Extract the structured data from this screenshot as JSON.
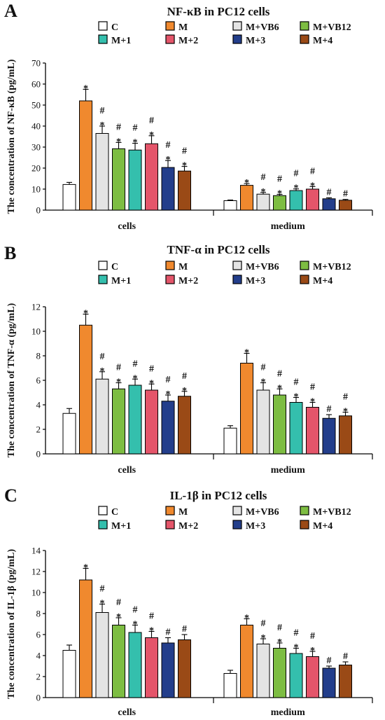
{
  "chart_data": [
    {
      "type": "bar",
      "panel": "A",
      "title": "NF-κB in PC12 cells",
      "xlabel": "",
      "ylabel": "The concentration of NF-κB (pg/mL)",
      "ylim": [
        0,
        70
      ],
      "yticks": [
        0,
        10,
        20,
        30,
        40,
        50,
        60,
        70
      ],
      "categories": [
        "cells",
        "medium"
      ],
      "series": [
        {
          "name": "C",
          "values": [
            12.2,
            4.5
          ],
          "errors": [
            1.0,
            0.3
          ],
          "labels": [
            "",
            ""
          ]
        },
        {
          "name": "M",
          "values": [
            52.0,
            11.8
          ],
          "errors": [
            5.5,
            0.8
          ],
          "labels": [
            "*",
            "*"
          ]
        },
        {
          "name": "M+VB6",
          "values": [
            36.5,
            7.6
          ],
          "errors": [
            3.5,
            0.8
          ],
          "labels": [
            "#\n*",
            "#\n*"
          ]
        },
        {
          "name": "M+VB12",
          "values": [
            29.2,
            6.9
          ],
          "errors": [
            3.0,
            0.6
          ],
          "labels": [
            "#\n*",
            "#\n*"
          ]
        },
        {
          "name": "M+1",
          "values": [
            28.6,
            9.3
          ],
          "errors": [
            3.2,
            0.8
          ],
          "labels": [
            "#\n*",
            "#\n*"
          ]
        },
        {
          "name": "M+2",
          "values": [
            31.6,
            10.0
          ],
          "errors": [
            3.8,
            1.2
          ],
          "labels": [
            "#\n*",
            "#\n*"
          ]
        },
        {
          "name": "M+3",
          "values": [
            20.3,
            5.4
          ],
          "errors": [
            3.3,
            0.5
          ],
          "labels": [
            "#\n*",
            "#"
          ]
        },
        {
          "name": "M+4",
          "values": [
            18.6,
            4.7
          ],
          "errors": [
            2.2,
            0.4
          ],
          "labels": [
            "#\n*",
            "#"
          ]
        }
      ]
    },
    {
      "type": "bar",
      "panel": "B",
      "title": "TNF-α in PC12 cells",
      "xlabel": "",
      "ylabel": "The concentration of TNF-α (pg/mL)",
      "ylim": [
        0,
        12
      ],
      "yticks": [
        0,
        2,
        4,
        6,
        8,
        10,
        12
      ],
      "categories": [
        "cells",
        "medium"
      ],
      "series": [
        {
          "name": "C",
          "values": [
            3.3,
            2.1
          ],
          "errors": [
            0.4,
            0.2
          ],
          "labels": [
            "",
            ""
          ]
        },
        {
          "name": "M",
          "values": [
            10.5,
            7.4
          ],
          "errors": [
            0.9,
            0.8
          ],
          "labels": [
            "*",
            "*"
          ]
        },
        {
          "name": "M+VB6",
          "values": [
            6.1,
            5.2
          ],
          "errors": [
            0.6,
            0.6
          ],
          "labels": [
            "#\n*",
            "#\n*"
          ]
        },
        {
          "name": "M+VB12",
          "values": [
            5.3,
            4.8
          ],
          "errors": [
            0.5,
            0.5
          ],
          "labels": [
            "#\n*",
            "#\n*"
          ]
        },
        {
          "name": "M+1",
          "values": [
            5.6,
            4.2
          ],
          "errors": [
            0.5,
            0.4
          ],
          "labels": [
            "#\n*",
            "#\n*"
          ]
        },
        {
          "name": "M+2",
          "values": [
            5.2,
            3.8
          ],
          "errors": [
            0.5,
            0.4
          ],
          "labels": [
            "#\n*",
            "#\n*"
          ]
        },
        {
          "name": "M+3",
          "values": [
            4.3,
            2.9
          ],
          "errors": [
            0.5,
            0.3
          ],
          "labels": [
            "#\n*",
            "#"
          ]
        },
        {
          "name": "M+4",
          "values": [
            4.7,
            3.1
          ],
          "errors": [
            0.4,
            0.3
          ],
          "labels": [
            "#\n*",
            "#\n*"
          ]
        }
      ]
    },
    {
      "type": "bar",
      "panel": "C",
      "title": "IL-1β in PC12 cells",
      "xlabel": "",
      "ylabel": "The concentration of IL-1β (pg/mL)",
      "ylim": [
        0,
        14
      ],
      "yticks": [
        0,
        2,
        4,
        6,
        8,
        10,
        12,
        14
      ],
      "categories": [
        "cells",
        "medium"
      ],
      "series": [
        {
          "name": "C",
          "values": [
            4.5,
            2.3
          ],
          "errors": [
            0.5,
            0.3
          ],
          "labels": [
            "",
            ""
          ]
        },
        {
          "name": "M",
          "values": [
            11.2,
            6.9
          ],
          "errors": [
            1.1,
            0.6
          ],
          "labels": [
            "*",
            "*"
          ]
        },
        {
          "name": "M+VB6",
          "values": [
            8.1,
            5.1
          ],
          "errors": [
            0.8,
            0.5
          ],
          "labels": [
            "#\n*",
            "#\n*"
          ]
        },
        {
          "name": "M+VB12",
          "values": [
            6.9,
            4.7
          ],
          "errors": [
            0.7,
            0.5
          ],
          "labels": [
            "#\n*",
            "#\n*"
          ]
        },
        {
          "name": "M+1",
          "values": [
            6.2,
            4.2
          ],
          "errors": [
            0.7,
            0.5
          ],
          "labels": [
            "#\n*",
            "#\n*"
          ]
        },
        {
          "name": "M+2",
          "values": [
            5.7,
            3.9
          ],
          "errors": [
            0.6,
            0.5
          ],
          "labels": [
            "#\n*",
            "#\n*"
          ]
        },
        {
          "name": "M+3",
          "values": [
            5.2,
            2.8
          ],
          "errors": [
            0.5,
            0.2
          ],
          "labels": [
            "#",
            "#"
          ]
        },
        {
          "name": "M+4",
          "values": [
            5.5,
            3.1
          ],
          "errors": [
            0.5,
            0.3
          ],
          "labels": [
            "#",
            "#"
          ]
        }
      ]
    }
  ],
  "series_colors": {
    "C": "#ffffff",
    "M": "#f0892e",
    "M+VB6": "#e4e4e4",
    "M+VB12": "#7dbd42",
    "M+1": "#34bfad",
    "M+2": "#e4556a",
    "M+3": "#233e8b",
    "M+4": "#9a4a16"
  }
}
